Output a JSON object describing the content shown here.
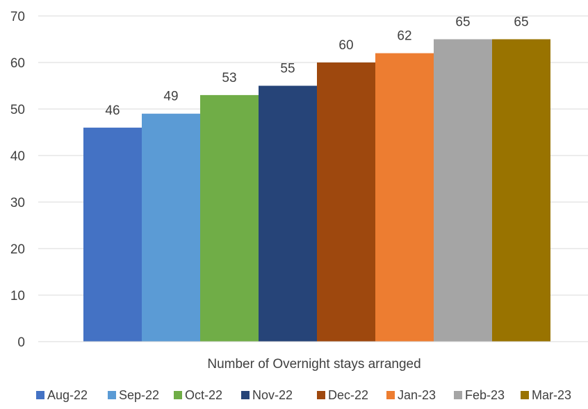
{
  "chart_data": {
    "type": "bar",
    "grouping": "clustered",
    "xlabel": "Number of Overnight stays arranged",
    "ylabel": "",
    "ylim": [
      0,
      70
    ],
    "yticks": [
      0,
      10,
      20,
      30,
      40,
      50,
      60,
      70
    ],
    "grid": true,
    "legend_position": "bottom",
    "data_labels": true,
    "categories": [
      "Number of Overnight stays arranged"
    ],
    "series": [
      {
        "name": "Aug-22",
        "values": [
          46
        ],
        "color": "#4472C4"
      },
      {
        "name": "Sep-22",
        "values": [
          49
        ],
        "color": "#5B9BD5"
      },
      {
        "name": "Oct-22",
        "values": [
          53
        ],
        "color": "#70AD47"
      },
      {
        "name": "Nov-22",
        "values": [
          55
        ],
        "color": "#264478"
      },
      {
        "name": "Dec-22",
        "values": [
          60
        ],
        "color": "#9E480E"
      },
      {
        "name": "Jan-23",
        "values": [
          62
        ],
        "color": "#ED7D31"
      },
      {
        "name": "Feb-23",
        "values": [
          65
        ],
        "color": "#A5A5A5"
      },
      {
        "name": "Mar-23",
        "values": [
          65
        ],
        "color": "#997300"
      }
    ]
  },
  "colors": {
    "gridline": "#d9d9d9",
    "text": "#404040"
  }
}
